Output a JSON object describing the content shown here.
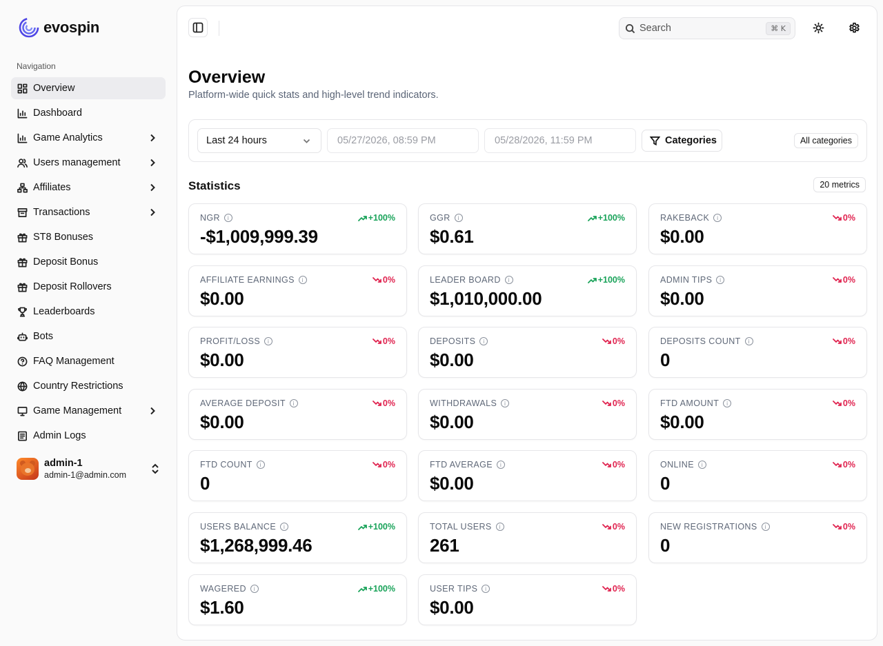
{
  "brand": {
    "name": "evospin"
  },
  "sidebar": {
    "heading": "Navigation",
    "items": [
      {
        "label": "Overview",
        "icon": "layout-dashboard-icon",
        "active": true,
        "chevron": false
      },
      {
        "label": "Dashboard",
        "icon": "bar-chart-icon",
        "chevron": false
      },
      {
        "label": "Game Analytics",
        "icon": "bar-chart-icon",
        "chevron": true
      },
      {
        "label": "Users management",
        "icon": "users-icon",
        "chevron": true
      },
      {
        "label": "Affiliates",
        "icon": "network-icon",
        "chevron": true
      },
      {
        "label": "Transactions",
        "icon": "archive-icon",
        "chevron": true
      },
      {
        "label": "ST8 Bonuses",
        "icon": "gift-icon",
        "chevron": false
      },
      {
        "label": "Deposit Bonus",
        "icon": "gift-icon",
        "chevron": false
      },
      {
        "label": "Deposit Rollovers",
        "icon": "gift-icon",
        "chevron": false
      },
      {
        "label": "Leaderboards",
        "icon": "trophy-icon",
        "chevron": false
      },
      {
        "label": "Bots",
        "icon": "bot-icon",
        "chevron": false
      },
      {
        "label": "FAQ Management",
        "icon": "help-circle-icon",
        "chevron": false
      },
      {
        "label": "Country Restrictions",
        "icon": "globe-icon",
        "chevron": false
      },
      {
        "label": "Game Management",
        "icon": "monitor-icon",
        "chevron": true
      },
      {
        "label": "Admin Logs",
        "icon": "logs-icon",
        "chevron": false
      }
    ],
    "user": {
      "name": "admin-1",
      "email": "admin-1@admin.com"
    }
  },
  "topbar": {
    "search_placeholder": "Search",
    "shortcut": "⌘ K"
  },
  "page": {
    "title": "Overview",
    "subtitle": "Platform-wide quick stats and high-level trend indicators."
  },
  "filters": {
    "range": "Last 24 hours",
    "from": "05/27/2026, 08:59 PM",
    "to": "05/28/2026, 11:59 PM",
    "categories_label": "Categories",
    "categories_badge": "All categories"
  },
  "stats": {
    "title": "Statistics",
    "count_badge": "20 metrics",
    "colors": {
      "up": "#1aa35a",
      "down": "#e02450"
    },
    "cards": [
      {
        "label": "NGR",
        "value": "-$1,009,999.39",
        "trend": "+100%",
        "dir": "up"
      },
      {
        "label": "GGR",
        "value": "$0.61",
        "trend": "+100%",
        "dir": "up"
      },
      {
        "label": "RAKEBACK",
        "value": "$0.00",
        "trend": "0%",
        "dir": "down"
      },
      {
        "label": "AFFILIATE EARNINGS",
        "value": "$0.00",
        "trend": "0%",
        "dir": "down"
      },
      {
        "label": "LEADER BOARD",
        "value": "$1,010,000.00",
        "trend": "+100%",
        "dir": "up"
      },
      {
        "label": "ADMIN TIPS",
        "value": "$0.00",
        "trend": "0%",
        "dir": "down"
      },
      {
        "label": "PROFIT/LOSS",
        "value": "$0.00",
        "trend": "0%",
        "dir": "down"
      },
      {
        "label": "DEPOSITS",
        "value": "$0.00",
        "trend": "0%",
        "dir": "down"
      },
      {
        "label": "DEPOSITS COUNT",
        "value": "0",
        "trend": "0%",
        "dir": "down"
      },
      {
        "label": "AVERAGE DEPOSIT",
        "value": "$0.00",
        "trend": "0%",
        "dir": "down"
      },
      {
        "label": "WITHDRAWALS",
        "value": "$0.00",
        "trend": "0%",
        "dir": "down"
      },
      {
        "label": "FTD AMOUNT",
        "value": "$0.00",
        "trend": "0%",
        "dir": "down"
      },
      {
        "label": "FTD COUNT",
        "value": "0",
        "trend": "0%",
        "dir": "down"
      },
      {
        "label": "FTD AVERAGE",
        "value": "$0.00",
        "trend": "0%",
        "dir": "down"
      },
      {
        "label": "ONLINE",
        "value": "0",
        "trend": "0%",
        "dir": "down"
      },
      {
        "label": "USERS BALANCE",
        "value": "$1,268,999.46",
        "trend": "+100%",
        "dir": "up"
      },
      {
        "label": "TOTAL USERS",
        "value": "261",
        "trend": "0%",
        "dir": "down"
      },
      {
        "label": "NEW REGISTRATIONS",
        "value": "0",
        "trend": "0%",
        "dir": "down"
      },
      {
        "label": "WAGERED",
        "value": "$1.60",
        "trend": "+100%",
        "dir": "up"
      },
      {
        "label": "USER TIPS",
        "value": "$0.00",
        "trend": "0%",
        "dir": "down"
      }
    ]
  }
}
